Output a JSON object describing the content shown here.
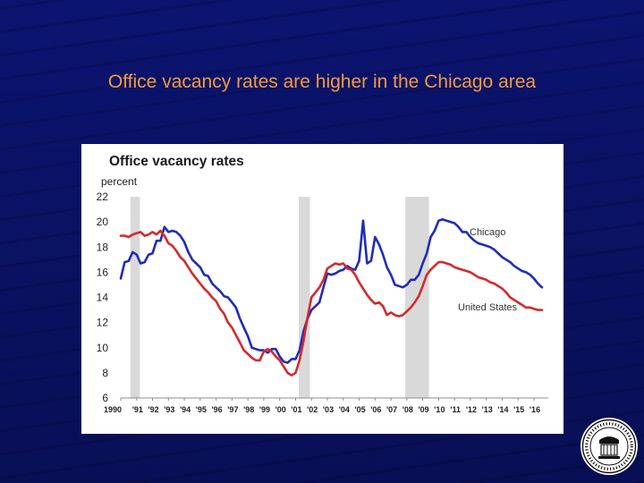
{
  "slide": {
    "title": "Office vacancy rates are higher in the Chicago area"
  },
  "chart_data": {
    "type": "line",
    "title": "Office vacancy rates",
    "ylabel": "percent",
    "xlabel": "",
    "ylim": [
      6,
      22
    ],
    "xlim": [
      1990,
      2016.9
    ],
    "y_ticks": [
      6,
      8,
      10,
      12,
      14,
      16,
      18,
      20,
      22
    ],
    "x_ticks": [
      {
        "x": 1990.0,
        "label": "1990"
      },
      {
        "x": 1991.0,
        "label": "'91"
      },
      {
        "x": 1992.0,
        "label": "'92"
      },
      {
        "x": 1993.0,
        "label": "'93"
      },
      {
        "x": 1994.0,
        "label": "'94"
      },
      {
        "x": 1995.0,
        "label": "'95"
      },
      {
        "x": 1996.0,
        "label": "'96"
      },
      {
        "x": 1997.0,
        "label": "'97"
      },
      {
        "x": 1998.0,
        "label": "'98"
      },
      {
        "x": 1999.0,
        "label": "'99"
      },
      {
        "x": 2000.0,
        "label": "'00"
      },
      {
        "x": 2001.0,
        "label": "'01"
      },
      {
        "x": 2002.0,
        "label": "'02"
      },
      {
        "x": 2003.0,
        "label": "'03"
      },
      {
        "x": 2004.0,
        "label": "'04"
      },
      {
        "x": 2005.0,
        "label": "'05"
      },
      {
        "x": 2006.0,
        "label": "'06"
      },
      {
        "x": 2007.0,
        "label": "'07"
      },
      {
        "x": 2008.0,
        "label": "'08"
      },
      {
        "x": 2009.0,
        "label": "'09"
      },
      {
        "x": 2010.0,
        "label": "'10"
      },
      {
        "x": 2011.0,
        "label": "'11"
      },
      {
        "x": 2012.0,
        "label": "'12"
      },
      {
        "x": 2013.0,
        "label": "'13"
      },
      {
        "x": 2014.0,
        "label": "'14"
      },
      {
        "x": 2015.0,
        "label": "'15"
      },
      {
        "x": 2016.0,
        "label": "'16"
      }
    ],
    "recessions": [
      [
        1990.6,
        1991.2
      ],
      [
        2001.2,
        2001.9
      ],
      [
        2007.9,
        2009.4
      ]
    ],
    "grid": false,
    "legend": "inline labels",
    "series": [
      {
        "name": "Chicago",
        "color": "#1f2db8",
        "x": [
          1990.0,
          1990.25,
          1990.5,
          1990.75,
          1991.0,
          1991.25,
          1991.5,
          1991.75,
          1992.0,
          1992.25,
          1992.5,
          1992.75,
          1993.0,
          1993.25,
          1993.5,
          1993.75,
          1994.0,
          1994.25,
          1994.5,
          1994.75,
          1995.0,
          1995.25,
          1995.5,
          1995.75,
          1996.0,
          1996.25,
          1996.5,
          1996.75,
          1997.0,
          1997.25,
          1997.5,
          1997.75,
          1998.0,
          1998.25,
          1998.5,
          1998.75,
          1999.0,
          1999.25,
          1999.5,
          1999.75,
          2000.0,
          2000.25,
          2000.5,
          2000.75,
          2001.0,
          2001.25,
          2001.5,
          2001.75,
          2002.0,
          2002.25,
          2002.5,
          2002.75,
          2003.0,
          2003.25,
          2003.5,
          2003.75,
          2004.0,
          2004.25,
          2004.5,
          2004.75,
          2005.0,
          2005.25,
          2005.5,
          2005.75,
          2006.0,
          2006.25,
          2006.5,
          2006.75,
          2007.0,
          2007.25,
          2007.5,
          2007.75,
          2008.0,
          2008.25,
          2008.5,
          2008.75,
          2009.0,
          2009.25,
          2009.5,
          2009.75,
          2010.0,
          2010.25,
          2010.5,
          2010.75,
          2011.0,
          2011.25,
          2011.5,
          2011.75,
          2012.0,
          2012.25,
          2012.5,
          2012.75,
          2013.0,
          2013.25,
          2013.5,
          2013.75,
          2014.0,
          2014.25,
          2014.5,
          2014.75,
          2015.0,
          2015.25,
          2015.5,
          2015.75,
          2016.0,
          2016.25,
          2016.5
        ],
        "values": [
          15.5,
          16.8,
          16.9,
          17.6,
          17.4,
          16.7,
          16.8,
          17.4,
          17.5,
          18.5,
          18.5,
          19.6,
          19.2,
          19.3,
          19.2,
          18.9,
          18.4,
          17.6,
          17.0,
          16.7,
          16.4,
          15.8,
          15.7,
          15.1,
          14.8,
          14.5,
          14.1,
          14.0,
          13.6,
          13.2,
          12.3,
          11.6,
          10.9,
          10.0,
          9.9,
          9.8,
          9.8,
          9.6,
          9.9,
          9.9,
          9.3,
          8.9,
          8.8,
          9.1,
          9.1,
          9.8,
          11.3,
          12.3,
          13.0,
          13.3,
          13.6,
          14.8,
          15.9,
          15.8,
          15.9,
          16.1,
          16.2,
          16.5,
          16.3,
          16.2,
          16.9,
          20.1,
          16.7,
          16.9,
          18.8,
          18.2,
          17.4,
          16.4,
          15.8,
          15.0,
          14.9,
          14.8,
          15.0,
          15.4,
          15.4,
          15.8,
          16.7,
          17.5,
          18.8,
          19.3,
          20.1,
          20.2,
          20.1,
          20.0,
          19.9,
          19.6,
          19.2,
          19.2,
          18.8,
          18.5,
          18.3,
          18.2,
          18.1,
          18.0,
          17.8,
          17.5,
          17.2,
          17.0,
          16.8,
          16.5,
          16.3,
          16.1,
          16.0,
          15.8,
          15.5,
          15.1,
          14.8
        ]
      },
      {
        "name": "United States",
        "color": "#d42a2a",
        "x": [
          1990.0,
          1990.25,
          1990.5,
          1990.75,
          1991.0,
          1991.25,
          1991.5,
          1991.75,
          1992.0,
          1992.25,
          1992.5,
          1992.75,
          1993.0,
          1993.25,
          1993.5,
          1993.75,
          1994.0,
          1994.25,
          1994.5,
          1994.75,
          1995.0,
          1995.25,
          1995.5,
          1995.75,
          1996.0,
          1996.25,
          1996.5,
          1996.75,
          1997.0,
          1997.25,
          1997.5,
          1997.75,
          1998.0,
          1998.25,
          1998.5,
          1998.75,
          1999.0,
          1999.25,
          1999.5,
          1999.75,
          2000.0,
          2000.25,
          2000.5,
          2000.75,
          2001.0,
          2001.25,
          2001.5,
          2001.75,
          2002.0,
          2002.25,
          2002.5,
          2002.75,
          2003.0,
          2003.25,
          2003.5,
          2003.75,
          2004.0,
          2004.25,
          2004.5,
          2004.75,
          2005.0,
          2005.25,
          2005.5,
          2005.75,
          2006.0,
          2006.25,
          2006.5,
          2006.75,
          2007.0,
          2007.25,
          2007.5,
          2007.75,
          2008.0,
          2008.25,
          2008.5,
          2008.75,
          2009.0,
          2009.25,
          2009.5,
          2009.75,
          2010.0,
          2010.25,
          2010.5,
          2010.75,
          2011.0,
          2011.25,
          2011.5,
          2011.75,
          2012.0,
          2012.25,
          2012.5,
          2012.75,
          2013.0,
          2013.25,
          2013.5,
          2013.75,
          2014.0,
          2014.25,
          2014.5,
          2014.75,
          2015.0,
          2015.25,
          2015.5,
          2015.75,
          2016.0,
          2016.25,
          2016.5
        ],
        "values": [
          18.9,
          18.9,
          18.8,
          19.0,
          19.1,
          19.2,
          18.9,
          19.0,
          19.2,
          19.0,
          19.3,
          18.9,
          18.3,
          18.1,
          17.7,
          17.2,
          16.9,
          16.4,
          15.9,
          15.5,
          15.1,
          14.7,
          14.4,
          14.0,
          13.7,
          13.1,
          12.7,
          12.0,
          11.6,
          11.0,
          10.4,
          9.8,
          9.5,
          9.2,
          9.0,
          9.0,
          9.7,
          9.9,
          9.7,
          9.3,
          9.0,
          8.5,
          8.0,
          7.8,
          8.0,
          9.0,
          10.5,
          12.4,
          14.0,
          14.4,
          14.8,
          15.4,
          16.3,
          16.5,
          16.7,
          16.6,
          16.7,
          16.3,
          16.2,
          15.8,
          15.2,
          14.7,
          14.2,
          13.8,
          13.5,
          13.6,
          13.3,
          12.6,
          12.8,
          12.6,
          12.5,
          12.6,
          12.9,
          13.2,
          13.6,
          14.1,
          14.9,
          15.8,
          16.2,
          16.5,
          16.8,
          16.8,
          16.7,
          16.6,
          16.4,
          16.3,
          16.2,
          16.1,
          16.0,
          15.8,
          15.6,
          15.5,
          15.4,
          15.2,
          15.1,
          14.9,
          14.7,
          14.4,
          14.0,
          13.8,
          13.6,
          13.4,
          13.2,
          13.2,
          13.1,
          13.0,
          13.0
        ]
      }
    ]
  }
}
